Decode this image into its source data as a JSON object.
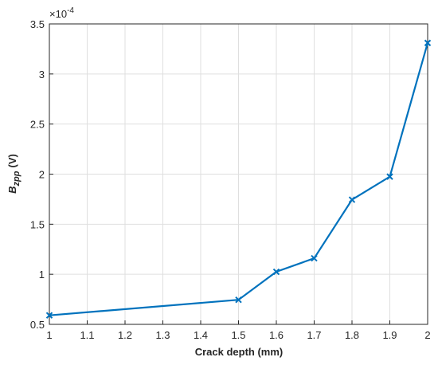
{
  "chart_data": {
    "type": "line",
    "x_label": "Crack depth (mm)",
    "y_label": {
      "main": "B",
      "sub": "zpp",
      "unit": "(V)"
    },
    "y_multiplier": {
      "base": "×10",
      "exponent": "-4"
    },
    "x": [
      1,
      1.5,
      1.6,
      1.7,
      1.8,
      1.9,
      2
    ],
    "series": [
      {
        "color": "#0072bd",
        "values": [
          0.59,
          0.745,
          1.025,
          1.16,
          1.745,
          1.975,
          3.31
        ]
      }
    ],
    "xlim": [
      1,
      2
    ],
    "xticks": [
      1,
      1.1,
      1.2,
      1.3,
      1.4,
      1.5,
      1.6,
      1.7,
      1.8,
      1.9,
      2
    ],
    "ylim": [
      0.5,
      3.5
    ],
    "yticks": [
      0.5,
      1,
      1.5,
      2,
      2.5,
      3,
      3.5
    ],
    "grid": true
  }
}
